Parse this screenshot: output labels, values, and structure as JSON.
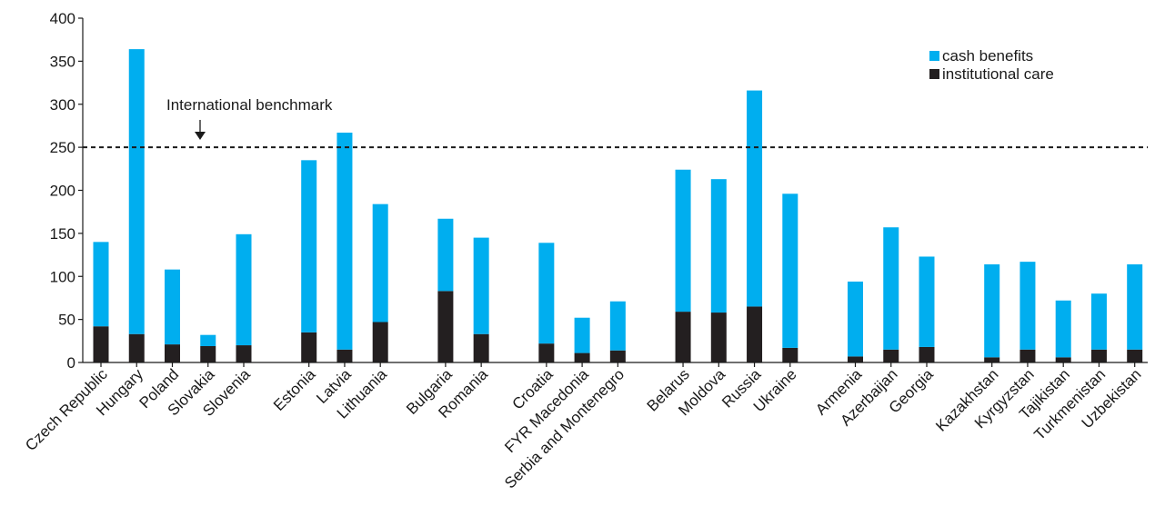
{
  "chart_data": {
    "type": "bar",
    "stacked": true,
    "title": "",
    "xlabel": "",
    "ylabel": "",
    "ylim": [
      0,
      400
    ],
    "yticks": [
      0,
      50,
      100,
      150,
      200,
      250,
      300,
      350,
      400
    ],
    "grid": false,
    "legend_position": "top-right",
    "groups": [
      [
        "Czech Republic",
        "Hungary",
        "Poland",
        "Slovakia",
        "Slovenia"
      ],
      [
        "Estonia",
        "Latvia",
        "Lithuania"
      ],
      [
        "Bulgaria",
        "Romania"
      ],
      [
        "Croatia",
        "FYR Macedonia",
        "Serbia and Montenegro"
      ],
      [
        "Belarus",
        "Moldova",
        "Russia",
        "Ukraine"
      ],
      [
        "Armenia",
        "Azerbaijan",
        "Georgia"
      ],
      [
        "Kazakhstan",
        "Kyrgyzstan",
        "Tajikistan",
        "Turkmenistan",
        "Uzbekistan"
      ]
    ],
    "categories": [
      "Czech Republic",
      "Hungary",
      "Poland",
      "Slovakia",
      "Slovenia",
      "Estonia",
      "Latvia",
      "Lithuania",
      "Bulgaria",
      "Romania",
      "Croatia",
      "FYR Macedonia",
      "Serbia and Montenegro",
      "Belarus",
      "Moldova",
      "Russia",
      "Ukraine",
      "Armenia",
      "Azerbaijan",
      "Georgia",
      "Kazakhstan",
      "Kyrgyzstan",
      "Tajikistan",
      "Turkmenistan",
      "Uzbekistan"
    ],
    "series": [
      {
        "name": "institutional care",
        "color": "#231f20",
        "values": [
          42,
          33,
          21,
          19,
          20,
          35,
          15,
          47,
          83,
          33,
          22,
          11,
          14,
          59,
          58,
          65,
          17,
          7,
          15,
          18,
          6,
          15,
          6,
          15,
          15
        ]
      },
      {
        "name": "cash benefits",
        "color": "#00aeef",
        "values": [
          98,
          331,
          87,
          13,
          129,
          200,
          252,
          137,
          84,
          112,
          117,
          41,
          57,
          165,
          155,
          251,
          179,
          87,
          142,
          105,
          108,
          102,
          66,
          65,
          99
        ]
      }
    ],
    "legend": [
      {
        "label": "cash benefits",
        "color": "#00aeef"
      },
      {
        "label": "institutional care",
        "color": "#231f20"
      }
    ],
    "benchmark": {
      "label": "International benchmark",
      "value": 250
    }
  }
}
